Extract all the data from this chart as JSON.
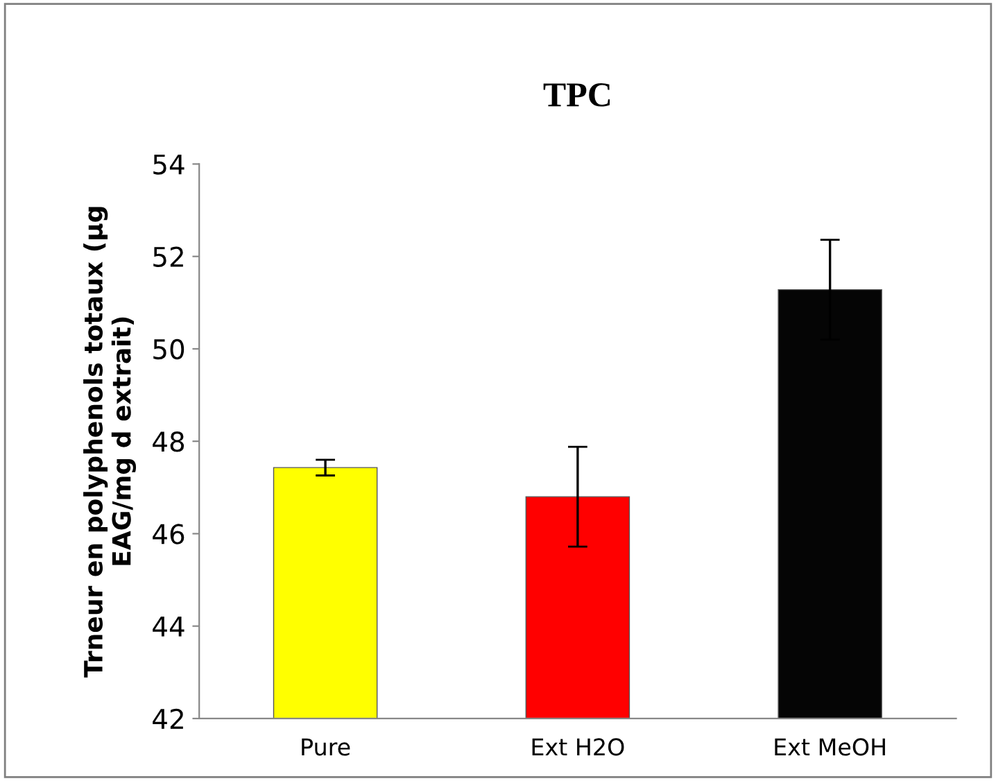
{
  "chart_data": {
    "type": "bar",
    "title": "TPC",
    "ylabel": "Trneur en polyphenols totaux (µg\nEAG/mg d extrait)",
    "categories": [
      "Pure",
      "Ext H2O",
      "Ext MeOH"
    ],
    "values": [
      47.43,
      46.8,
      51.28
    ],
    "colors": [
      "#ffff00",
      "#ff0000",
      "#050505"
    ],
    "errors": [
      0.17,
      1.08,
      1.08
    ],
    "ylim": [
      42,
      54
    ],
    "yticks": [
      42,
      44,
      46,
      48,
      50,
      52,
      54
    ],
    "grid": false,
    "legend": false
  }
}
